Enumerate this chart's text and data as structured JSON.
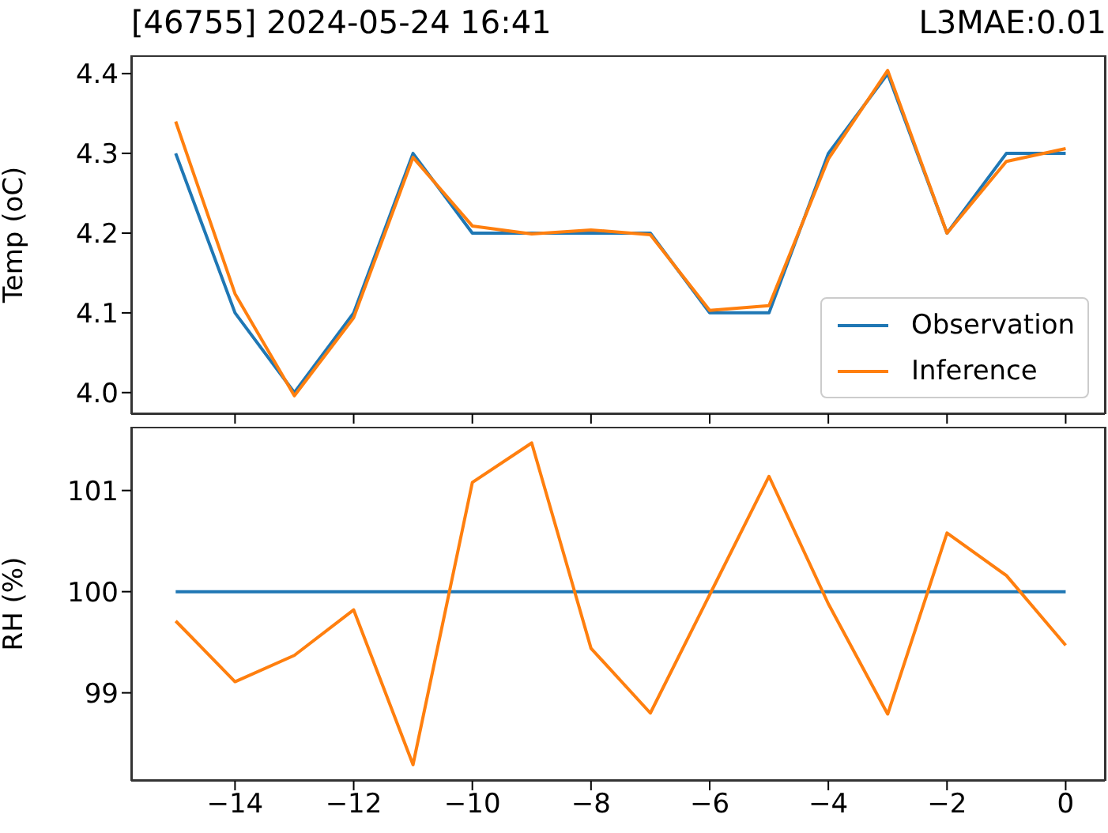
{
  "chart_data": [
    {
      "type": "line",
      "title": "[46755] 2024-05-24 16:41",
      "annotations": [
        "L3MAE:0.01"
      ],
      "ylabel": "Temp (oC)",
      "x": [
        -15,
        -14,
        -13,
        -12,
        -11,
        -10,
        -9,
        -8,
        -7,
        -6,
        -5,
        -4,
        -3,
        -2,
        -1,
        0
      ],
      "series": [
        {
          "name": "Observation",
          "color": "#1f77b4",
          "values": [
            4.3,
            4.1,
            4.0,
            4.1,
            4.3,
            4.2,
            4.2,
            4.2,
            4.2,
            4.1,
            4.1,
            4.3,
            4.4,
            4.2,
            4.3,
            4.3
          ]
        },
        {
          "name": "Inference",
          "color": "#ff7f0e",
          "values": [
            4.34,
            4.124,
            3.996,
            4.094,
            4.295,
            4.209,
            4.199,
            4.204,
            4.198,
            4.103,
            4.109,
            4.293,
            4.404,
            4.2,
            4.29,
            4.306
          ]
        }
      ],
      "xlim": [
        -15.75,
        0.66
      ],
      "xticks": [
        -14,
        -12,
        -10,
        -8,
        -6,
        -4,
        -2,
        0
      ],
      "ylim": [
        3.973,
        4.423
      ],
      "yticks": [
        {
          "value": 4,
          "label": "4.0"
        },
        4.1,
        4.2,
        4.3,
        4.4
      ],
      "tick_labels": "y",
      "legend": "bottom right",
      "grid": false
    },
    {
      "type": "line",
      "ylabel": "RH (%)",
      "x": [
        -15,
        -14,
        -13,
        -12,
        -11,
        -10,
        -9,
        -8,
        -7,
        -6,
        -5,
        -4,
        -3,
        -2,
        -1,
        0
      ],
      "series": [
        {
          "color": "#1f77b4",
          "values": [
            100,
            100,
            100,
            100,
            100,
            100,
            100,
            100,
            100,
            100,
            100,
            100,
            100,
            100,
            100,
            100
          ]
        },
        {
          "color": "#ff7f0e",
          "values": [
            99.71,
            99.11,
            99.37,
            99.82,
            98.29,
            101.08,
            101.47,
            99.44,
            98.8,
            99.97,
            101.14,
            99.88,
            98.79,
            100.58,
            100.16,
            99.47
          ]
        }
      ],
      "xlim": [
        -15.75,
        0.66
      ],
      "xticks": [
        {
          "value": -14,
          "label": "−14"
        },
        {
          "value": -12,
          "label": "−12"
        },
        {
          "value": -10,
          "label": "−10"
        },
        {
          "value": -8,
          "label": "−8"
        },
        {
          "value": -6,
          "label": "−6"
        },
        {
          "value": -4,
          "label": "−4"
        },
        {
          "value": -2,
          "label": "−2"
        },
        0
      ],
      "ylim": [
        98.13,
        101.63
      ],
      "yticks": [
        99,
        100,
        101
      ],
      "legend": false,
      "grid": false
    }
  ]
}
